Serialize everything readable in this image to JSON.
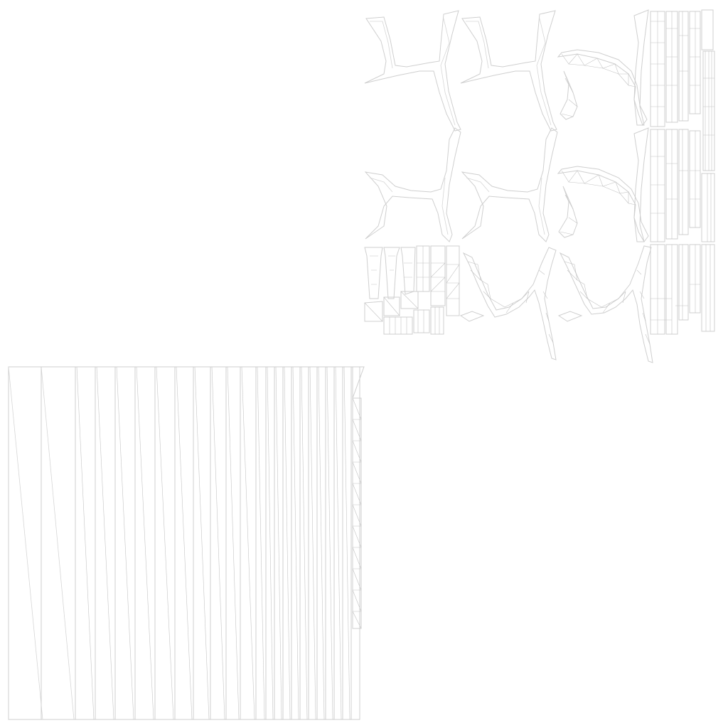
{
  "canvas": {
    "background": "#ffffff",
    "line_color": "#cfcfcf"
  },
  "uv_layout": {
    "islands": [
      {
        "name": "frame-arm-top-left",
        "kind": "arm"
      },
      {
        "name": "frame-arm-top-middle",
        "kind": "arm"
      },
      {
        "name": "frame-curve-top-right",
        "kind": "triangulated-curve"
      },
      {
        "name": "frame-arm-middle-left",
        "kind": "arm"
      },
      {
        "name": "frame-arm-middle-middle",
        "kind": "arm"
      },
      {
        "name": "frame-curve-middle-right",
        "kind": "triangulated-curve"
      },
      {
        "name": "frame-curve-bottom-middle",
        "kind": "triangulated-curve"
      },
      {
        "name": "frame-curve-bottom-right",
        "kind": "triangulated-curve"
      },
      {
        "name": "small-parts-cluster",
        "kind": "packed-rects"
      },
      {
        "name": "strip-column-right",
        "kind": "packed-strips"
      },
      {
        "name": "seat-slats-panel",
        "kind": "vertical-strips"
      }
    ]
  }
}
